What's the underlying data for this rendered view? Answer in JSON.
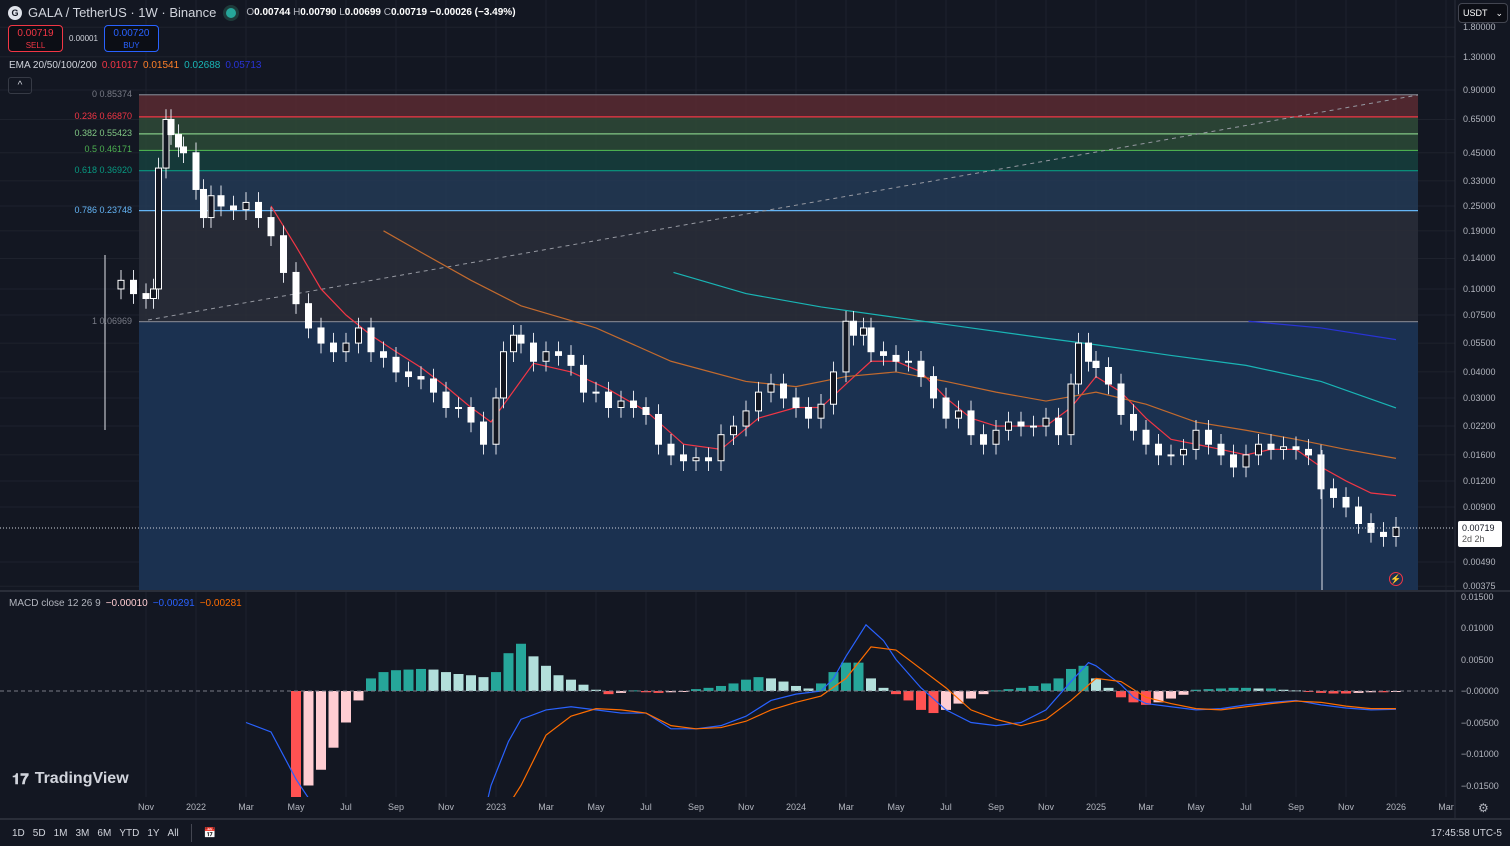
{
  "header": {
    "symbol": "GALA / TetherUS · 1W · Binance",
    "open_label": "O",
    "open": "0.00744",
    "high_label": "H",
    "high": "0.00790",
    "low_label": "L",
    "low": "0.00699",
    "close_label": "C",
    "close": "0.00719",
    "change": "−0.00026 (−3.49%)",
    "logo": "G"
  },
  "trade": {
    "sell_price": "0.00719",
    "sell_label": "SELL",
    "spread": "0.00001",
    "buy_price": "0.00720",
    "buy_label": "BUY"
  },
  "ema": {
    "label": "EMA 20/50/100/200",
    "v20": "0.01017",
    "v50": "0.01541",
    "v100": "0.02688",
    "v200": "0.05713"
  },
  "collapse_icon": "^",
  "currency": "USDT",
  "last_price": {
    "value": "0.00719",
    "countdown": "2d 2h"
  },
  "macd": {
    "label": "MACD close 12 26 9",
    "hist": "−0.00010",
    "macd": "−0.00291",
    "signal": "−0.00281"
  },
  "brand": "TradingView",
  "ranges": [
    "1D",
    "5D",
    "1M",
    "3M",
    "6M",
    "YTD",
    "1Y",
    "All"
  ],
  "clock": "17:45:58 UTC-5",
  "colors": {
    "bg": "#131722",
    "ema20": "#f23645",
    "ema50": "#ff7f27",
    "ema100": "#19b5b5",
    "ema200": "#2933d6",
    "up": "#26a69a",
    "down": "#ff5252"
  },
  "chart_data": {
    "type": "candlestick",
    "scale": "log",
    "x_unit": "months since Jan 2022",
    "price_ticks": [
      "1.80000",
      "1.30000",
      "0.90000",
      "0.65000",
      "0.45000",
      "0.33000",
      "0.25000",
      "0.19000",
      "0.14000",
      "0.10000",
      "0.07500",
      "0.05500",
      "0.04000",
      "0.03000",
      "0.02200",
      "0.01600",
      "0.01200",
      "0.00900",
      "0.00490",
      "0.00375"
    ],
    "time_ticks": [
      [
        "Nov",
        -2
      ],
      [
        "2022",
        0
      ],
      [
        "Mar",
        2
      ],
      [
        "May",
        4
      ],
      [
        "Jul",
        6
      ],
      [
        "Sep",
        8
      ],
      [
        "Nov",
        10
      ],
      [
        "2023",
        12
      ],
      [
        "Mar",
        14
      ],
      [
        "May",
        16
      ],
      [
        "Jul",
        18
      ],
      [
        "Sep",
        20
      ],
      [
        "Nov",
        22
      ],
      [
        "2024",
        24
      ],
      [
        "Mar",
        26
      ],
      [
        "May",
        28
      ],
      [
        "Jul",
        30
      ],
      [
        "Sep",
        32
      ],
      [
        "Nov",
        34
      ],
      [
        "2025",
        36
      ],
      [
        "Mar",
        38
      ],
      [
        "May",
        40
      ],
      [
        "Jul",
        42
      ],
      [
        "Sep",
        44
      ],
      [
        "Nov",
        46
      ],
      [
        "2026",
        48
      ],
      [
        "Mar",
        50
      ]
    ],
    "fib": {
      "levels": [
        [
          "0",
          "0.85374"
        ],
        [
          "0.236",
          "0.66870"
        ],
        [
          "0.382",
          "0.55423"
        ],
        [
          "0.5",
          "0.46171"
        ],
        [
          "0.618",
          "0.36920"
        ],
        [
          "0.786",
          "0.23748"
        ],
        [
          "1",
          "0.06969"
        ]
      ],
      "colors": [
        "#787b86",
        "#f23645",
        "#81c784",
        "#4caf50",
        "#089981",
        "#64b5f6",
        "#787b86"
      ]
    },
    "closes": [
      [
        -3.5,
        0.1
      ],
      [
        -3,
        0.11
      ],
      [
        -2.5,
        0.095
      ],
      [
        -2,
        0.09
      ],
      [
        -1.7,
        0.1
      ],
      [
        -1.5,
        0.38
      ],
      [
        -1.2,
        0.65
      ],
      [
        -1,
        0.55
      ],
      [
        -0.7,
        0.48
      ],
      [
        -0.5,
        0.45
      ],
      [
        0,
        0.3
      ],
      [
        0.3,
        0.22
      ],
      [
        0.6,
        0.28
      ],
      [
        1,
        0.25
      ],
      [
        1.5,
        0.24
      ],
      [
        2,
        0.26
      ],
      [
        2.5,
        0.22
      ],
      [
        3,
        0.18
      ],
      [
        3.5,
        0.12
      ],
      [
        4,
        0.085
      ],
      [
        4.5,
        0.065
      ],
      [
        5,
        0.055
      ],
      [
        5.5,
        0.05
      ],
      [
        6,
        0.055
      ],
      [
        6.5,
        0.065
      ],
      [
        7,
        0.05
      ],
      [
        7.5,
        0.047
      ],
      [
        8,
        0.04
      ],
      [
        8.5,
        0.038
      ],
      [
        9,
        0.037
      ],
      [
        9.5,
        0.032
      ],
      [
        10,
        0.027
      ],
      [
        10.5,
        0.027
      ],
      [
        11,
        0.023
      ],
      [
        11.5,
        0.018
      ],
      [
        12,
        0.03
      ],
      [
        12.3,
        0.05
      ],
      [
        12.7,
        0.06
      ],
      [
        13,
        0.055
      ],
      [
        13.5,
        0.045
      ],
      [
        14,
        0.05
      ],
      [
        14.5,
        0.048
      ],
      [
        15,
        0.043
      ],
      [
        15.5,
        0.032
      ],
      [
        16,
        0.032
      ],
      [
        16.5,
        0.027
      ],
      [
        17,
        0.029
      ],
      [
        17.5,
        0.027
      ],
      [
        18,
        0.025
      ],
      [
        18.5,
        0.018
      ],
      [
        19,
        0.016
      ],
      [
        19.5,
        0.015
      ],
      [
        20,
        0.0155
      ],
      [
        20.5,
        0.015
      ],
      [
        21,
        0.02
      ],
      [
        21.5,
        0.022
      ],
      [
        22,
        0.026
      ],
      [
        22.5,
        0.032
      ],
      [
        23,
        0.035
      ],
      [
        23.5,
        0.03
      ],
      [
        24,
        0.027
      ],
      [
        24.5,
        0.024
      ],
      [
        25,
        0.028
      ],
      [
        25.5,
        0.04
      ],
      [
        26,
        0.07
      ],
      [
        26.3,
        0.06
      ],
      [
        26.7,
        0.065
      ],
      [
        27,
        0.05
      ],
      [
        27.5,
        0.048
      ],
      [
        28,
        0.045
      ],
      [
        28.5,
        0.045
      ],
      [
        29,
        0.038
      ],
      [
        29.5,
        0.03
      ],
      [
        30,
        0.024
      ],
      [
        30.5,
        0.026
      ],
      [
        31,
        0.02
      ],
      [
        31.5,
        0.018
      ],
      [
        32,
        0.021
      ],
      [
        32.5,
        0.023
      ],
      [
        33,
        0.022
      ],
      [
        33.5,
        0.022
      ],
      [
        34,
        0.024
      ],
      [
        34.5,
        0.02
      ],
      [
        35,
        0.035
      ],
      [
        35.3,
        0.055
      ],
      [
        35.7,
        0.045
      ],
      [
        36,
        0.042
      ],
      [
        36.5,
        0.035
      ],
      [
        37,
        0.025
      ],
      [
        37.5,
        0.021
      ],
      [
        38,
        0.018
      ],
      [
        38.5,
        0.016
      ],
      [
        39,
        0.016
      ],
      [
        39.5,
        0.017
      ],
      [
        40,
        0.021
      ],
      [
        40.5,
        0.018
      ],
      [
        41,
        0.016
      ],
      [
        41.5,
        0.014
      ],
      [
        42,
        0.016
      ],
      [
        42.5,
        0.018
      ],
      [
        43,
        0.017
      ],
      [
        43.5,
        0.0175
      ],
      [
        44,
        0.017
      ],
      [
        44.5,
        0.016
      ],
      [
        45,
        0.011
      ],
      [
        45.5,
        0.01
      ],
      [
        46,
        0.009
      ],
      [
        46.5,
        0.0075
      ],
      [
        47,
        0.0068
      ],
      [
        47.5,
        0.0065
      ],
      [
        48,
        0.00719
      ]
    ],
    "ema20": [
      [
        3,
        0.25
      ],
      [
        4,
        0.16
      ],
      [
        5,
        0.1
      ],
      [
        6,
        0.075
      ],
      [
        7,
        0.06
      ],
      [
        8,
        0.05
      ],
      [
        9,
        0.042
      ],
      [
        10,
        0.034
      ],
      [
        11,
        0.027
      ],
      [
        11.8,
        0.023
      ],
      [
        12.5,
        0.03
      ],
      [
        13.5,
        0.044
      ],
      [
        15,
        0.04
      ],
      [
        16.5,
        0.033
      ],
      [
        18,
        0.026
      ],
      [
        19.5,
        0.018
      ],
      [
        21,
        0.017
      ],
      [
        22.5,
        0.024
      ],
      [
        24,
        0.027
      ],
      [
        25,
        0.027
      ],
      [
        26,
        0.035
      ],
      [
        27,
        0.045
      ],
      [
        28,
        0.045
      ],
      [
        29,
        0.04
      ],
      [
        30,
        0.03
      ],
      [
        31,
        0.024
      ],
      [
        32,
        0.022
      ],
      [
        33,
        0.022
      ],
      [
        34,
        0.022
      ],
      [
        35,
        0.027
      ],
      [
        36,
        0.038
      ],
      [
        37,
        0.032
      ],
      [
        38,
        0.024
      ],
      [
        39,
        0.019
      ],
      [
        40,
        0.018
      ],
      [
        41,
        0.017
      ],
      [
        42,
        0.016
      ],
      [
        43,
        0.017
      ],
      [
        44,
        0.017
      ],
      [
        45,
        0.014
      ],
      [
        46,
        0.012
      ],
      [
        47,
        0.0105
      ],
      [
        48,
        0.0102
      ]
    ],
    "ema50": [
      [
        7.5,
        0.19
      ],
      [
        9,
        0.15
      ],
      [
        11,
        0.11
      ],
      [
        13,
        0.083
      ],
      [
        16,
        0.065
      ],
      [
        19,
        0.045
      ],
      [
        22,
        0.036
      ],
      [
        24,
        0.034
      ],
      [
        26,
        0.038
      ],
      [
        28,
        0.04
      ],
      [
        30,
        0.036
      ],
      [
        32,
        0.032
      ],
      [
        34,
        0.029
      ],
      [
        36,
        0.032
      ],
      [
        38,
        0.028
      ],
      [
        40,
        0.023
      ],
      [
        42,
        0.021
      ],
      [
        44,
        0.019
      ],
      [
        46,
        0.017
      ],
      [
        48,
        0.0154
      ]
    ],
    "ema100": [
      [
        19.1,
        0.12
      ],
      [
        22,
        0.095
      ],
      [
        25,
        0.082
      ],
      [
        28,
        0.073
      ],
      [
        31,
        0.065
      ],
      [
        34,
        0.058
      ],
      [
        36,
        0.054
      ],
      [
        39,
        0.048
      ],
      [
        42,
        0.043
      ],
      [
        45,
        0.036
      ],
      [
        48,
        0.02688
      ]
    ],
    "ema200": [
      [
        42.1,
        0.07
      ],
      [
        45,
        0.065
      ],
      [
        48,
        0.05713
      ]
    ],
    "macd_ticks": [
      "0.01500",
      "0.01000",
      "0.00500",
      "−0.00000",
      "−0.00500",
      "−0.01000",
      "−0.01500"
    ],
    "macd_tick_values": [
      0.015,
      0.01,
      0.005,
      0,
      -0.005,
      -0.01,
      -0.015
    ],
    "histogram": [
      [
        4,
        -0.017
      ],
      [
        4.5,
        -0.015
      ],
      [
        5,
        -0.0125
      ],
      [
        5.5,
        -0.009
      ],
      [
        6,
        -0.005
      ],
      [
        6.5,
        -0.0015
      ],
      [
        7,
        0.002
      ],
      [
        7.5,
        0.003
      ],
      [
        8,
        0.0033
      ],
      [
        8.5,
        0.0034
      ],
      [
        9,
        0.0035
      ],
      [
        9.5,
        0.0034
      ],
      [
        10,
        0.003
      ],
      [
        10.5,
        0.0027
      ],
      [
        11,
        0.0025
      ],
      [
        11.5,
        0.0022
      ],
      [
        12,
        0.003
      ],
      [
        12.5,
        0.006
      ],
      [
        13,
        0.0075
      ],
      [
        13.5,
        0.0055
      ],
      [
        14,
        0.004
      ],
      [
        14.5,
        0.0025
      ],
      [
        15,
        0.0018
      ],
      [
        15.5,
        0.001
      ],
      [
        16,
        0.0002
      ],
      [
        16.5,
        -0.0005
      ],
      [
        17,
        -0.0003
      ],
      [
        17.5,
        0.0001
      ],
      [
        18,
        -0.0002
      ],
      [
        18.5,
        -0.0003
      ],
      [
        19,
        -0.0002
      ],
      [
        19.5,
        -0.0001
      ],
      [
        20,
        0.0003
      ],
      [
        20.5,
        0.0005
      ],
      [
        21,
        0.0008
      ],
      [
        21.5,
        0.0012
      ],
      [
        22,
        0.0018
      ],
      [
        22.5,
        0.0022
      ],
      [
        23,
        0.002
      ],
      [
        23.5,
        0.0015
      ],
      [
        24,
        0.0008
      ],
      [
        24.5,
        0.0004
      ],
      [
        25,
        0.0012
      ],
      [
        25.5,
        0.003
      ],
      [
        26,
        0.0045
      ],
      [
        26.5,
        0.0045
      ],
      [
        27,
        0.002
      ],
      [
        27.5,
        0.0005
      ],
      [
        28,
        -0.0005
      ],
      [
        28.5,
        -0.0015
      ],
      [
        29,
        -0.003
      ],
      [
        29.5,
        -0.0035
      ],
      [
        30,
        -0.003
      ],
      [
        30.5,
        -0.002
      ],
      [
        31,
        -0.0012
      ],
      [
        31.5,
        -0.0005
      ],
      [
        32,
        0.0001
      ],
      [
        32.5,
        0.0003
      ],
      [
        33,
        0.0005
      ],
      [
        33.5,
        0.0008
      ],
      [
        34,
        0.0012
      ],
      [
        34.5,
        0.002
      ],
      [
        35,
        0.0035
      ],
      [
        35.5,
        0.004
      ],
      [
        36,
        0.002
      ],
      [
        36.5,
        0.0005
      ],
      [
        37,
        -0.001
      ],
      [
        37.5,
        -0.0018
      ],
      [
        38,
        -0.0022
      ],
      [
        38.5,
        -0.0018
      ],
      [
        39,
        -0.0012
      ],
      [
        39.5,
        -0.0006
      ],
      [
        40,
        0.0002
      ],
      [
        40.5,
        0.0003
      ],
      [
        41,
        0.0004
      ],
      [
        41.5,
        0.0005
      ],
      [
        42,
        0.0005
      ],
      [
        42.5,
        0.0004
      ],
      [
        43,
        0.0004
      ],
      [
        43.5,
        0.0002
      ],
      [
        44,
        0.0001
      ],
      [
        44.5,
        -0.0001
      ],
      [
        45,
        -0.0003
      ],
      [
        45.5,
        -0.0004
      ],
      [
        46,
        -0.0004
      ],
      [
        46.5,
        -0.0003
      ],
      [
        47,
        -0.0002
      ],
      [
        47.5,
        -0.0002
      ],
      [
        48,
        -0.0001
      ]
    ],
    "macd_line": [
      [
        2,
        -0.005
      ],
      [
        3,
        -0.0065
      ],
      [
        4,
        -0.014
      ],
      [
        5,
        -0.02
      ],
      [
        11.5,
        -0.02
      ],
      [
        11.8,
        -0.015
      ],
      [
        12.5,
        -0.008
      ],
      [
        13,
        -0.0045
      ],
      [
        14,
        -0.003
      ],
      [
        15,
        -0.0025
      ],
      [
        16,
        -0.003
      ],
      [
        17,
        -0.0035
      ],
      [
        18,
        -0.0035
      ],
      [
        19,
        -0.006
      ],
      [
        20,
        -0.006
      ],
      [
        21,
        -0.0055
      ],
      [
        22,
        -0.004
      ],
      [
        23,
        -0.0015
      ],
      [
        24,
        -0.0005
      ],
      [
        25,
        0
      ],
      [
        25.5,
        0.002
      ],
      [
        26,
        0.0055
      ],
      [
        26.8,
        0.0105
      ],
      [
        27.5,
        0.008
      ],
      [
        28,
        0.005
      ],
      [
        29,
        0.0005
      ],
      [
        30,
        -0.003
      ],
      [
        31,
        -0.005
      ],
      [
        32,
        -0.0055
      ],
      [
        33,
        -0.005
      ],
      [
        34,
        -0.003
      ],
      [
        35,
        0.0015
      ],
      [
        35.7,
        0.0045
      ],
      [
        36,
        0.004
      ],
      [
        37,
        0.001
      ],
      [
        37.5,
        -0.001
      ],
      [
        38,
        -0.002
      ],
      [
        39,
        -0.0025
      ],
      [
        40,
        -0.003
      ],
      [
        41,
        -0.0028
      ],
      [
        42,
        -0.0022
      ],
      [
        43,
        -0.0018
      ],
      [
        44,
        -0.0015
      ],
      [
        45,
        -0.0022
      ],
      [
        46,
        -0.0027
      ],
      [
        47,
        -0.003
      ],
      [
        48,
        -0.0029
      ]
    ],
    "signal_line": [
      [
        12.2,
        -0.02
      ],
      [
        13,
        -0.015
      ],
      [
        14,
        -0.007
      ],
      [
        15,
        -0.004
      ],
      [
        16,
        -0.0028
      ],
      [
        17,
        -0.003
      ],
      [
        18,
        -0.0035
      ],
      [
        19,
        -0.0055
      ],
      [
        20,
        -0.006
      ],
      [
        21,
        -0.0058
      ],
      [
        22,
        -0.0048
      ],
      [
        23,
        -0.003
      ],
      [
        24,
        -0.0018
      ],
      [
        25,
        -0.0008
      ],
      [
        26,
        0.002
      ],
      [
        27,
        0.007
      ],
      [
        28,
        0.0065
      ],
      [
        29,
        0.0035
      ],
      [
        30,
        0.0005
      ],
      [
        31,
        -0.003
      ],
      [
        32,
        -0.0045
      ],
      [
        33,
        -0.0055
      ],
      [
        34,
        -0.0045
      ],
      [
        35,
        -0.0015
      ],
      [
        36,
        0.002
      ],
      [
        37,
        0.0015
      ],
      [
        38,
        -0.001
      ],
      [
        39,
        -0.002
      ],
      [
        40,
        -0.0028
      ],
      [
        41,
        -0.003
      ],
      [
        42,
        -0.0025
      ],
      [
        43,
        -0.002
      ],
      [
        44,
        -0.0016
      ],
      [
        45,
        -0.0018
      ],
      [
        46,
        -0.0024
      ],
      [
        47,
        -0.0028
      ],
      [
        48,
        -0.0028
      ]
    ]
  }
}
